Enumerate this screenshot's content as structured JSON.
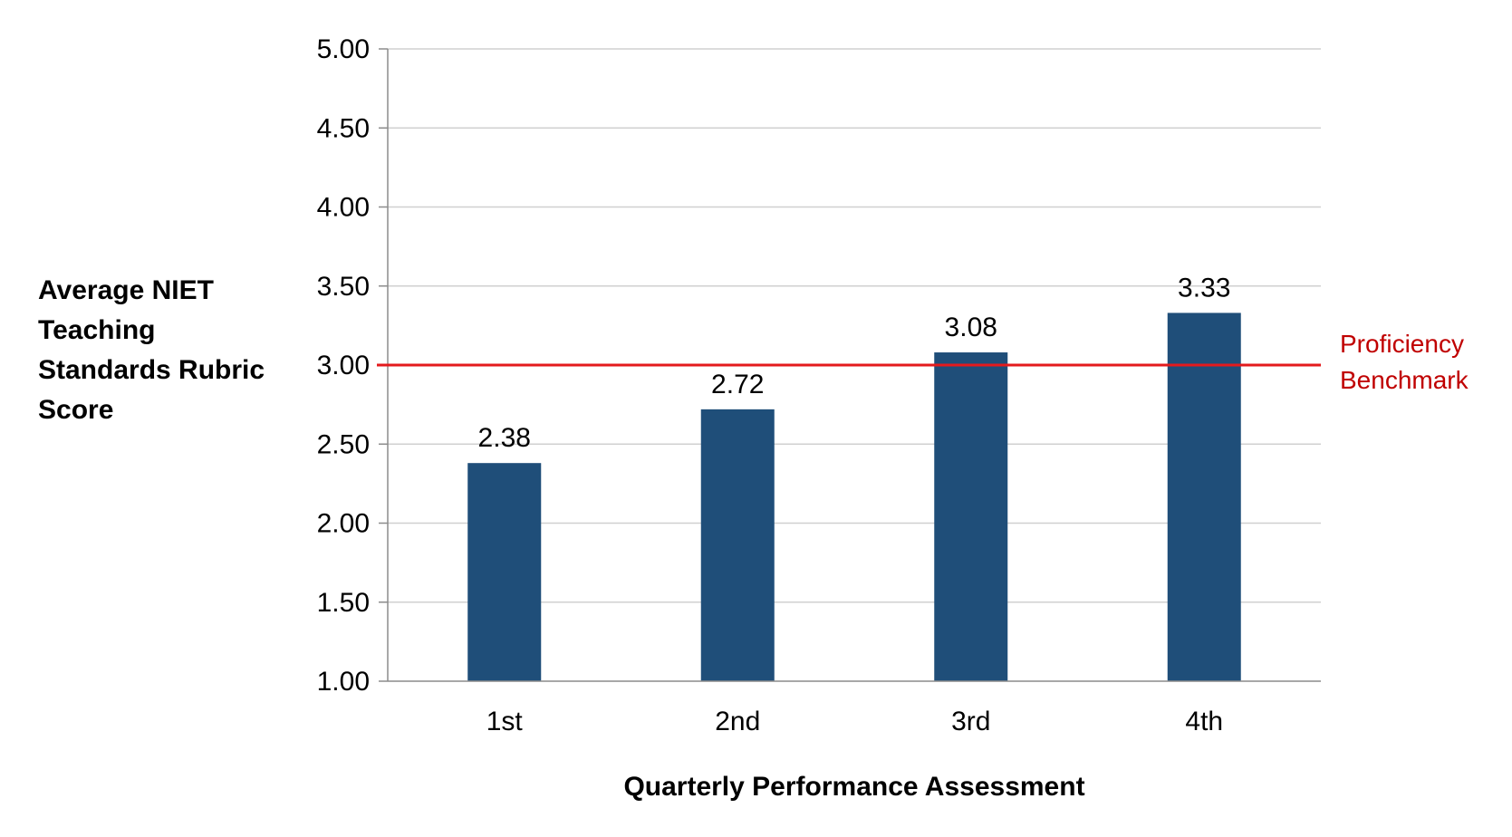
{
  "chart_data": {
    "type": "bar",
    "categories": [
      "1st",
      "2nd",
      "3rd",
      "4th"
    ],
    "values": [
      2.38,
      2.72,
      3.08,
      3.33
    ],
    "data_labels": [
      "2.38",
      "2.72",
      "3.08",
      "3.33"
    ],
    "xlabel": "Quarterly Performance Assessment",
    "ylabel_lines": [
      "Average NIET",
      "Teaching",
      "Standards Rubric",
      "Score"
    ],
    "ylim": [
      1.0,
      5.0
    ],
    "yticks": [
      1.0,
      1.5,
      2.0,
      2.5,
      3.0,
      3.5,
      4.0,
      4.5,
      5.0
    ],
    "ytick_labels": [
      "1.00",
      "1.50",
      "2.00",
      "2.50",
      "3.00",
      "3.50",
      "4.00",
      "4.50",
      "5.00"
    ],
    "grid": true,
    "bar_color": "#1f4e79",
    "reference_line": {
      "value": 3.0,
      "label_lines": [
        "Proficiency",
        "Benchmark"
      ],
      "color": "#e41a1c",
      "label_color": "#c00000"
    }
  }
}
